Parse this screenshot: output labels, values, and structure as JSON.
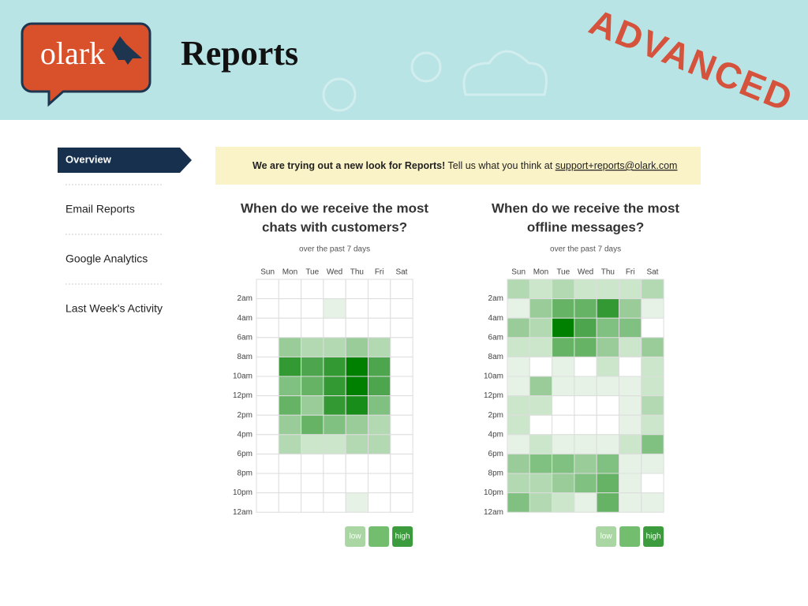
{
  "header": {
    "logo": "olark",
    "title": "Reports",
    "stamp": "ADVANCED"
  },
  "sidebar": {
    "items": [
      "Overview",
      "Email Reports",
      "Google Analytics",
      "Last Week's Activity"
    ]
  },
  "banner": {
    "bold": "We are trying out a new look for Reports!",
    "text": "Tell us what you think at",
    "link": "support+reports@olark.com"
  },
  "charts": [
    {
      "title": [
        "When do we receive the most",
        "chats with customers?"
      ],
      "subtitle": "over the past 7 days",
      "days": [
        "Sun",
        "Mon",
        "Tue",
        "Wed",
        "Thu",
        "Fri",
        "Sat"
      ],
      "hours": [
        "2am",
        "4am",
        "6am",
        "8am",
        "10am",
        "12pm",
        "2pm",
        "4pm",
        "6pm",
        "8pm",
        "10pm",
        "12am"
      ],
      "values": [
        [
          0,
          0,
          0,
          0,
          0,
          0,
          0
        ],
        [
          0,
          0,
          0,
          1,
          0,
          0,
          0
        ],
        [
          0,
          0,
          0,
          0,
          0,
          0,
          0
        ],
        [
          0,
          4,
          3,
          3,
          4,
          3,
          0
        ],
        [
          0,
          8,
          7,
          8,
          10,
          7,
          0
        ],
        [
          0,
          5,
          6,
          8,
          10,
          7,
          0
        ],
        [
          0,
          6,
          4,
          8,
          9,
          5,
          0
        ],
        [
          0,
          4,
          6,
          5,
          4,
          3,
          0
        ],
        [
          0,
          3,
          2,
          2,
          3,
          3,
          0
        ],
        [
          0,
          0,
          0,
          0,
          0,
          0,
          0
        ],
        [
          0,
          0,
          0,
          0,
          0,
          0,
          0
        ],
        [
          0,
          0,
          0,
          0,
          1,
          0,
          0
        ]
      ],
      "legend": [
        "low",
        "high"
      ]
    },
    {
      "title": [
        "When do we receive the most",
        "offline messages?"
      ],
      "subtitle": "over the past 7 days",
      "days": [
        "Sun",
        "Mon",
        "Tue",
        "Wed",
        "Thu",
        "Fri",
        "Sat"
      ],
      "hours": [
        "2am",
        "4am",
        "6am",
        "8am",
        "10am",
        "12pm",
        "2pm",
        "4pm",
        "6pm",
        "8pm",
        "10pm",
        "12am"
      ],
      "values": [
        [
          3,
          2,
          3,
          2,
          2,
          2,
          3
        ],
        [
          1,
          4,
          6,
          6,
          8,
          4,
          1
        ],
        [
          4,
          3,
          10,
          7,
          5,
          5,
          0
        ],
        [
          2,
          2,
          6,
          6,
          4,
          2,
          4
        ],
        [
          1,
          0,
          1,
          0,
          2,
          0,
          2
        ],
        [
          1,
          4,
          1,
          1,
          1,
          1,
          2
        ],
        [
          2,
          2,
          0,
          0,
          0,
          1,
          3
        ],
        [
          2,
          0,
          0,
          0,
          0,
          1,
          2
        ],
        [
          1,
          2,
          1,
          1,
          1,
          2,
          5
        ],
        [
          4,
          5,
          5,
          4,
          5,
          1,
          1
        ],
        [
          3,
          3,
          4,
          5,
          6,
          1,
          0
        ],
        [
          5,
          3,
          2,
          1,
          6,
          1,
          1
        ]
      ],
      "legend": [
        "low",
        "high"
      ]
    }
  ]
}
